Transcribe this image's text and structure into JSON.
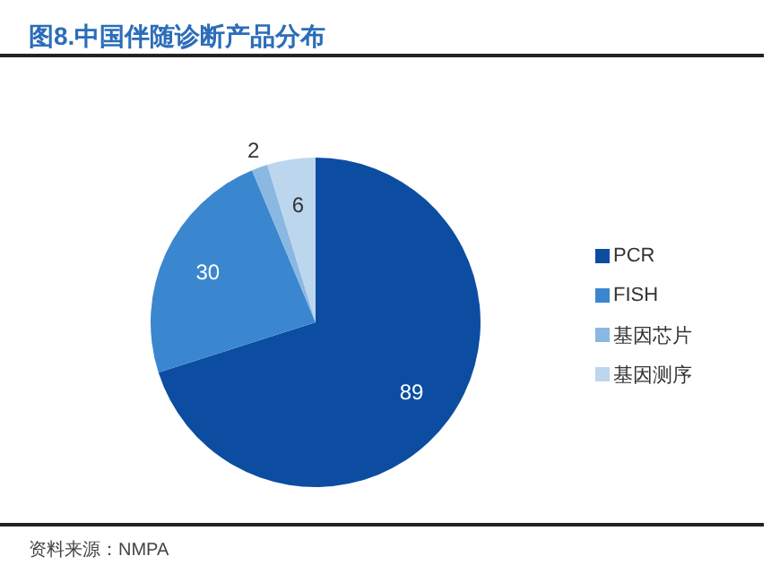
{
  "chart_data": {
    "type": "pie",
    "title": "图8.中国伴随诊断产品分布",
    "categories": [
      "PCR",
      "FISH",
      "基因芯片",
      "基因测序"
    ],
    "values": [
      89,
      30,
      2,
      6
    ],
    "colors": [
      "#0c4da2",
      "#3a87cf",
      "#8ab8e2",
      "#bcd6ee"
    ],
    "data_labels": true,
    "legend": "right",
    "annotations": [
      "资料来源：NMPA"
    ]
  }
}
